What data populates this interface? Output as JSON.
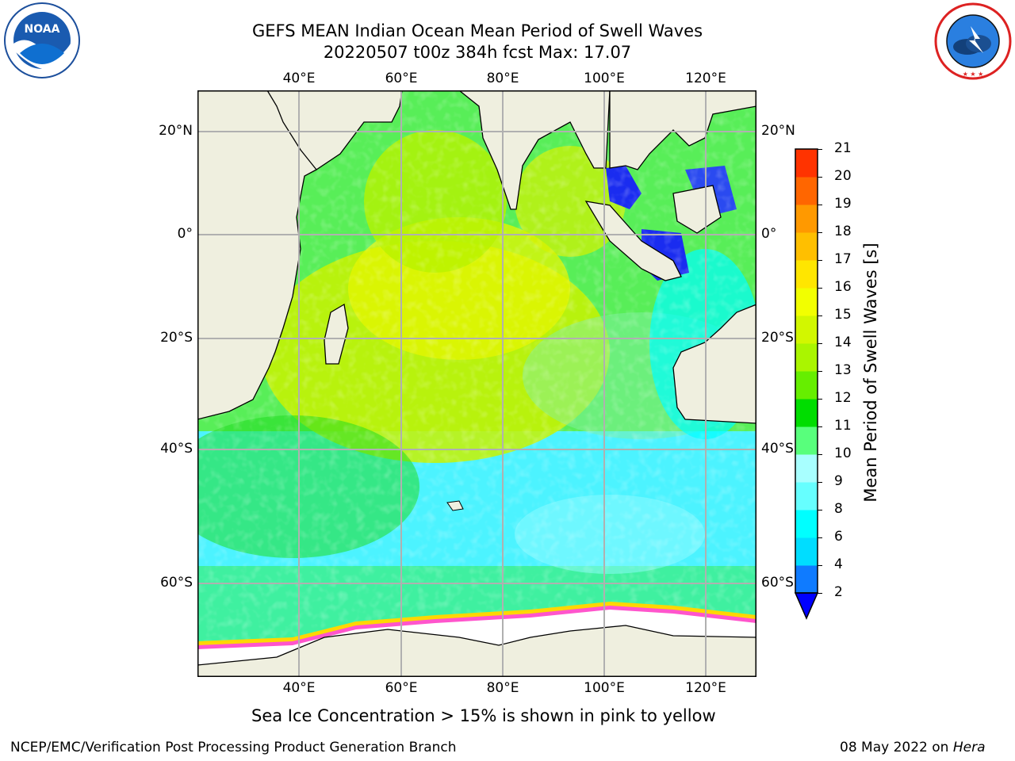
{
  "title": {
    "line1": "GEFS MEAN Indian Ocean Mean Period of Swell Waves",
    "line2": "20220507 t00z 384h fcst   Max: 17.07"
  },
  "logos": {
    "left": {
      "text": "NOAA",
      "ring": "NATIONAL OCEANIC AND ATMOSPHERIC ADMINISTRATION · U.S. DEPARTMENT OF COMMERCE"
    },
    "right": {
      "ring": "NATIONAL WEATHER SERVICE"
    }
  },
  "axes": {
    "lon_labels": [
      "40°E",
      "60°E",
      "80°E",
      "100°E",
      "120°E"
    ],
    "lat_labels": [
      "20°N",
      "0°",
      "20°S",
      "40°S",
      "60°S"
    ]
  },
  "colorbar": {
    "label": "Mean Period of Swell Waves [s]",
    "ticks": [
      "2",
      "4",
      "6",
      "8",
      "9",
      "10",
      "11",
      "12",
      "13",
      "14",
      "15",
      "16",
      "17",
      "18",
      "19",
      "20",
      "21"
    ],
    "colors": [
      "#0f7bff",
      "#00ddff",
      "#00ffff",
      "#66ffff",
      "#a8ffff",
      "#58ff7c",
      "#00dd00",
      "#66ee00",
      "#aaf500",
      "#d2f700",
      "#f2ff00",
      "#ffe600",
      "#ffbf00",
      "#ff9900",
      "#ff6600",
      "#ff3300",
      "#ff0000"
    ],
    "extend_color": "#0000ff"
  },
  "caption": "Sea Ice Concentration > 15% is shown in pink to yellow",
  "footer": {
    "left": "NCEP/EMC/Verification Post Processing Product Generation Branch",
    "right_date": "08 May 2022 on",
    "right_machine": "Hera"
  }
}
